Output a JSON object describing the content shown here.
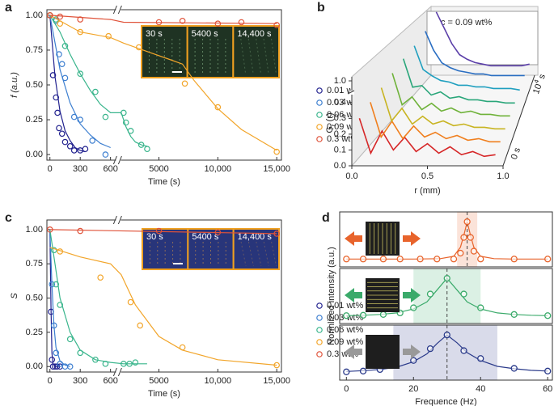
{
  "chart_data": [
    {
      "panel": "a",
      "type": "scatter",
      "xlabel": "Time (s)",
      "ylabel": "f (a.u.)",
      "xlim": [
        -30,
        15400
      ],
      "xbreak": [
        650,
        1800
      ],
      "xticks": [
        0,
        300,
        600,
        5000,
        {
          "value": 10000,
          "label": "10,000"
        },
        {
          "value": 15000,
          "label": "15,000"
        }
      ],
      "ylim": [
        -0.04,
        1.04
      ],
      "yticks": [
        {
          "value": 0,
          "label": "0.00"
        },
        {
          "value": 0.25,
          "label": "0.25"
        },
        {
          "value": 0.5,
          "label": "0.50"
        },
        {
          "value": 0.75,
          "label": "0.75"
        },
        {
          "value": 1,
          "label": "1.00"
        }
      ],
      "insets": [
        "30 s",
        "5400 s",
        "14,400 s"
      ],
      "series": [
        {
          "name": "0.01 wt%",
          "color": "#22228f",
          "x": [
            0,
            30,
            60,
            75,
            90,
            120,
            150,
            200,
            240,
            300,
            350
          ],
          "values": [
            1.0,
            0.57,
            0.41,
            0.3,
            0.19,
            0.15,
            0.09,
            0.06,
            0.03,
            0.03,
            0.04
          ],
          "fit_x": [
            0,
            50,
            100,
            150,
            200,
            250,
            300,
            350
          ],
          "fit_values": [
            1,
            0.56,
            0.31,
            0.17,
            0.1,
            0.05,
            0.03,
            0.02
          ]
        },
        {
          "name": "0.03 wt%",
          "color": "#3d7fd0",
          "x": [
            0,
            60,
            90,
            120,
            150,
            240,
            300,
            420,
            550
          ],
          "values": [
            1.0,
            0.96,
            0.72,
            0.65,
            0.55,
            0.27,
            0.25,
            0.1,
            0.0
          ],
          "fit_x": [
            0,
            100,
            200,
            300,
            400,
            500,
            600
          ],
          "fit_values": [
            1,
            0.61,
            0.37,
            0.22,
            0.14,
            0.08,
            0.05
          ]
        },
        {
          "name": "0.06 wt%",
          "color": "#39b58c",
          "x": [
            0,
            60,
            150,
            300,
            450,
            550,
            2000,
            2200,
            2600,
            3500,
            4000
          ],
          "values": [
            1.0,
            0.97,
            0.78,
            0.58,
            0.45,
            0.27,
            0.3,
            0.23,
            0.17,
            0.07,
            0.04
          ],
          "fit_x": [
            0,
            100,
            200,
            300,
            400,
            500,
            600,
            1800,
            2200,
            2600,
            3000,
            3500,
            4000
          ],
          "fit_values": [
            1,
            0.88,
            0.72,
            0.58,
            0.46,
            0.36,
            0.3,
            0.3,
            0.2,
            0.13,
            0.09,
            0.07,
            0.06
          ]
        },
        {
          "name": "0.09 wt%",
          "color": "#f2a52a",
          "x": [
            0,
            100,
            300,
            580,
            3300,
            7200,
            10000,
            15000
          ],
          "values": [
            1.0,
            0.94,
            0.88,
            0.85,
            0.77,
            0.51,
            0.34,
            0.02
          ],
          "fit_x": [
            0,
            300,
            600,
            2000,
            4000,
            6000,
            7000,
            8000,
            10000,
            12000,
            15000
          ],
          "fit_values": [
            1.0,
            0.88,
            0.84,
            0.8,
            0.74,
            0.68,
            0.65,
            0.53,
            0.33,
            0.18,
            0.03
          ]
        },
        {
          "name": "0.3 wt%",
          "color": "#e0533a",
          "x": [
            0,
            100,
            300,
            5000,
            7000,
            10000,
            12000,
            15000
          ],
          "values": [
            1.0,
            0.99,
            0.97,
            0.95,
            0.96,
            0.94,
            0.95,
            0.93
          ],
          "fit_x": [
            0,
            600,
            2000,
            15000
          ],
          "fit_values": [
            1,
            0.97,
            0.95,
            0.94
          ]
        }
      ]
    },
    {
      "panel": "b",
      "type": "waterfall",
      "xlabel": "r (mm)",
      "ylabel": {
        "main": "G",
        "sub": "r",
        "rest": " (r)"
      },
      "annotation": "c = 0.09 wt%",
      "zlabel_start": "0 s",
      "zlabel_end": {
        "main": "10",
        "sup": "4",
        "rest": " s"
      },
      "xlim": [
        0,
        1
      ],
      "xticks": [
        {
          "value": 0,
          "label": "0.0"
        },
        {
          "value": 0.5,
          "label": "0.5"
        },
        {
          "value": 1,
          "label": "1.0"
        }
      ],
      "ylim": [
        0,
        1
      ],
      "ybreak": [
        0.45,
        0.95
      ],
      "yticks": [
        {
          "value": 0,
          "label": "0.0"
        },
        {
          "value": 0.1,
          "label": "0.1"
        },
        {
          "value": 0.2,
          "label": "0.2"
        },
        {
          "value": 0.3,
          "label": "0.3"
        },
        {
          "value": 0.4,
          "label": "0.4"
        },
        {
          "value": 1,
          "label": "1.0"
        }
      ],
      "x": [
        0.05,
        0.125,
        0.2,
        0.275,
        0.35,
        0.425,
        0.5,
        0.575,
        0.65,
        0.725,
        0.8,
        0.875,
        0.95
      ],
      "series": [
        {
          "color": "#d62728",
          "values": [
            0.3,
            0.08,
            0.22,
            0.1,
            0.18,
            0.09,
            0.14,
            0.08,
            0.12,
            0.07,
            0.09,
            0.06,
            0.07
          ]
        },
        {
          "color": "#f07f1e",
          "values": [
            0.32,
            0.1,
            0.2,
            0.09,
            0.17,
            0.1,
            0.13,
            0.09,
            0.11,
            0.08,
            0.09,
            0.07,
            0.07
          ]
        },
        {
          "color": "#c8b422",
          "values": [
            0.33,
            0.12,
            0.2,
            0.1,
            0.15,
            0.1,
            0.12,
            0.09,
            0.1,
            0.08,
            0.08,
            0.07,
            0.07
          ]
        },
        {
          "color": "#6fb23a",
          "values": [
            0.34,
            0.14,
            0.19,
            0.11,
            0.15,
            0.1,
            0.12,
            0.09,
            0.1,
            0.08,
            0.08,
            0.07,
            0.07
          ]
        },
        {
          "color": "#2aa67a",
          "values": [
            0.35,
            0.17,
            0.18,
            0.12,
            0.14,
            0.1,
            0.11,
            0.09,
            0.09,
            0.08,
            0.08,
            0.07,
            0.07
          ]
        },
        {
          "color": "#1f9fbf",
          "values": [
            0.35,
            0.2,
            0.16,
            0.13,
            0.12,
            0.1,
            0.1,
            0.09,
            0.09,
            0.08,
            0.08,
            0.08,
            0.07
          ]
        },
        {
          "color": "#2a6ec2",
          "values": [
            0.36,
            0.24,
            0.16,
            0.13,
            0.11,
            0.1,
            0.09,
            0.09,
            0.08,
            0.08,
            0.08,
            0.08,
            0.08
          ]
        },
        {
          "color": "#5a3ea8",
          "values": [
            0.4,
            0.3,
            0.2,
            0.13,
            0.1,
            0.08,
            0.07,
            0.06,
            0.06,
            0.06,
            0.06,
            0.06,
            0.07
          ]
        }
      ]
    },
    {
      "panel": "c",
      "type": "scatter",
      "xlabel": "Time (s)",
      "ylabel": "S",
      "xlim": [
        -30,
        15400
      ],
      "xbreak": [
        650,
        1800
      ],
      "xticks": [
        0,
        300,
        600,
        5000,
        {
          "value": 10000,
          "label": "10,000"
        },
        {
          "value": 15000,
          "label": "15,000"
        }
      ],
      "ylim": [
        -0.04,
        1.07
      ],
      "yticks": [
        {
          "value": 0,
          "label": "0.00"
        },
        {
          "value": 0.25,
          "label": "0.25"
        },
        {
          "value": 0.5,
          "label": "0.50"
        },
        {
          "value": 0.75,
          "label": "0.75"
        },
        {
          "value": 1,
          "label": "1.00"
        }
      ],
      "insets": [
        "30 s",
        "5400 s",
        "14,400 s"
      ],
      "series": [
        {
          "name": "0.01 wt%",
          "color": "#22228f",
          "x": [
            10,
            20,
            30,
            50,
            70,
            100
          ],
          "values": [
            0.4,
            0.05,
            0,
            0,
            0,
            0
          ],
          "fit_x": [
            0,
            10,
            20,
            30,
            60,
            100
          ],
          "fit_values": [
            1.0,
            0.45,
            0.1,
            0.02,
            0,
            0
          ]
        },
        {
          "name": "0.03 wt%",
          "color": "#3d7fd0",
          "x": [
            20,
            40,
            60,
            100,
            150,
            200
          ],
          "values": [
            0.6,
            0.3,
            0.1,
            0.02,
            0,
            0
          ],
          "fit_x": [
            0,
            20,
            40,
            60,
            100,
            150,
            200
          ],
          "fit_values": [
            1,
            0.6,
            0.3,
            0.14,
            0.04,
            0.01,
            0
          ]
        },
        {
          "name": "0.06 wt%",
          "color": "#39b58c",
          "x": [
            40,
            60,
            100,
            200,
            300,
            450,
            550,
            2000,
            2500,
            3000
          ],
          "values": [
            0.85,
            0.6,
            0.45,
            0.2,
            0.1,
            0.05,
            0.02,
            0.02,
            0.02,
            0.03
          ],
          "fit_x": [
            0,
            50,
            100,
            200,
            300,
            450,
            600,
            2000,
            4000
          ],
          "fit_values": [
            1,
            0.75,
            0.5,
            0.25,
            0.12,
            0.05,
            0.03,
            0.02,
            0.02
          ]
        },
        {
          "name": "0.09 wt%",
          "color": "#f2a52a",
          "x": [
            100,
            500,
            2600,
            3400,
            7000,
            15000
          ],
          "values": [
            0.84,
            0.65,
            0.47,
            0.3,
            0.14,
            0.01
          ],
          "fit_x": [
            0,
            300,
            600,
            1800,
            3000,
            5000,
            7000,
            10000,
            15000
          ],
          "fit_values": [
            0.87,
            0.8,
            0.75,
            0.67,
            0.45,
            0.22,
            0.12,
            0.05,
            0.01
          ]
        },
        {
          "name": "0.3 wt%",
          "color": "#e0533a",
          "x": [
            0,
            300,
            5000,
            10000,
            15000
          ],
          "values": [
            1,
            0.99,
            0.99,
            0.98,
            0.97
          ],
          "fit_x": [
            0,
            15000
          ],
          "fit_values": [
            1.0,
            0.97
          ]
        }
      ]
    },
    {
      "panel": "d",
      "type": "line",
      "xlabel": "Frequence (Hz)",
      "ylabel": "Normlized intensity (a.u.)",
      "xlim": [
        -2,
        61.4
      ],
      "xticks": [
        0,
        20,
        40,
        60
      ],
      "ylim": [
        -0.15,
        1.25
      ],
      "subplots": [
        {
          "color": "#e8642c",
          "band": [
            33,
            39
          ],
          "peak": 36,
          "x": [
            0,
            5,
            11,
            16,
            22,
            27,
            32,
            34,
            35,
            36,
            37,
            38,
            40,
            50,
            60
          ],
          "values": [
            0.05,
            0.05,
            0.05,
            0.05,
            0.05,
            0.05,
            0.05,
            0.2,
            0.6,
            1.0,
            0.6,
            0.25,
            0.05,
            0.05,
            0.05
          ],
          "fit_x": [
            0,
            10,
            20,
            28,
            32,
            34,
            35,
            36,
            37,
            38,
            40,
            44,
            50,
            60
          ],
          "fit_values": [
            0.05,
            0.05,
            0.05,
            0.06,
            0.12,
            0.35,
            0.65,
            1.0,
            0.65,
            0.35,
            0.12,
            0.06,
            0.05,
            0.05
          ]
        },
        {
          "color": "#3aaa6a",
          "band": [
            20,
            40
          ],
          "peak": 30,
          "x": [
            0,
            5,
            11,
            16,
            20,
            25,
            30,
            35,
            40,
            50,
            60
          ],
          "values": [
            0.05,
            0.06,
            0.08,
            0.12,
            0.25,
            0.6,
            1.0,
            0.6,
            0.25,
            0.08,
            0.05
          ],
          "fit_x": [
            0,
            5,
            10,
            15,
            20,
            24,
            27,
            30,
            33,
            36,
            40,
            45,
            50,
            55,
            60
          ],
          "fit_values": [
            0.05,
            0.06,
            0.08,
            0.12,
            0.22,
            0.4,
            0.7,
            1.0,
            0.7,
            0.4,
            0.22,
            0.12,
            0.08,
            0.06,
            0.05
          ]
        },
        {
          "color": "#2a3a8a",
          "band": [
            14,
            45
          ],
          "peak": 30,
          "x": [
            0,
            5,
            10,
            20,
            25,
            30,
            35,
            40,
            50,
            60
          ],
          "values": [
            0.06,
            0.08,
            0.12,
            0.35,
            0.65,
            1.0,
            0.6,
            0.4,
            0.15,
            0.08
          ],
          "fit_x": [
            0,
            5,
            10,
            15,
            20,
            24,
            27,
            30,
            33,
            36,
            40,
            45,
            50,
            55,
            60
          ],
          "fit_values": [
            0.07,
            0.09,
            0.12,
            0.18,
            0.32,
            0.52,
            0.78,
            1.0,
            0.8,
            0.55,
            0.35,
            0.2,
            0.14,
            0.1,
            0.08
          ]
        }
      ]
    }
  ]
}
